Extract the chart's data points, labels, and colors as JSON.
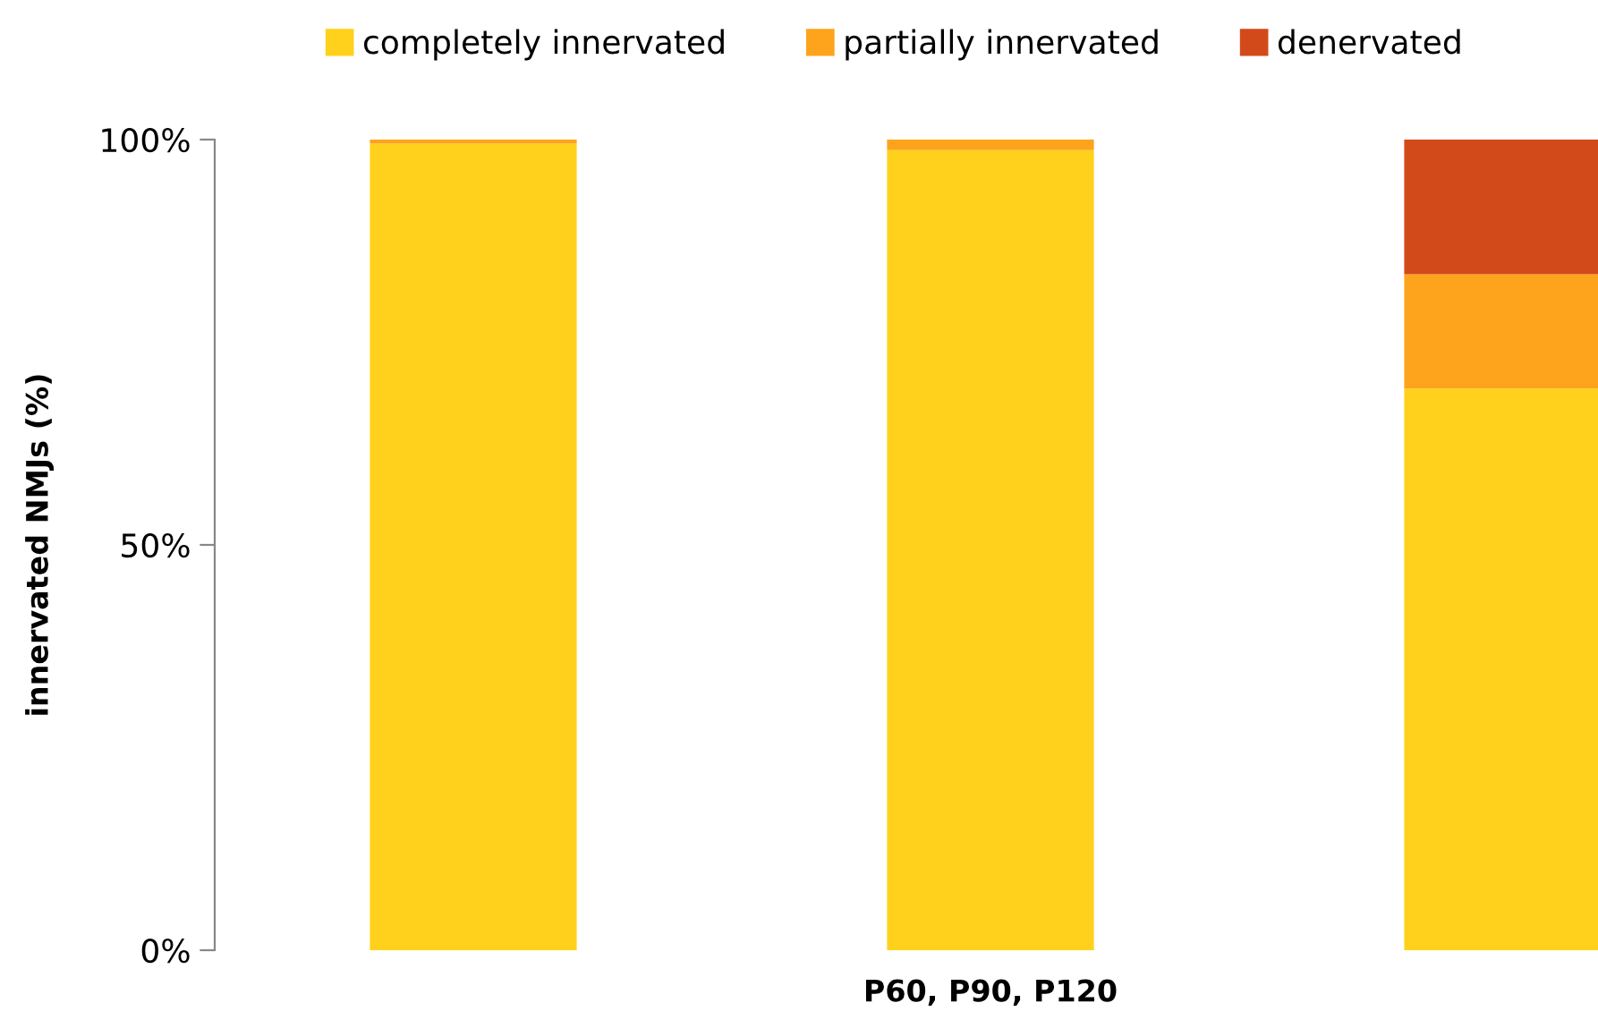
{
  "chart_data": {
    "type": "bar",
    "stacked": true,
    "xlabel": "P60, P90, P120",
    "ylabel": "innervated NMJs (%)",
    "categories": [
      null,
      null,
      null
    ],
    "series": [
      {
        "name": "completely innervated",
        "color": "#ffd11c",
        "values": [
          99.5,
          98.7,
          69.3
        ]
      },
      {
        "name": "partially innervated",
        "color": "#fda41c",
        "values": [
          0.5,
          1.3,
          14.1
        ]
      },
      {
        "name": "denervated",
        "color": "#d34a1a",
        "values": [
          0,
          0,
          16.6
        ]
      }
    ],
    "ylim": [
      0,
      100
    ],
    "yticks": [
      {
        "value": 0,
        "label": "0%"
      },
      {
        "value": 50,
        "label": "50%"
      },
      {
        "value": 100,
        "label": "100%"
      }
    ],
    "legend": "top",
    "grid": false
  }
}
